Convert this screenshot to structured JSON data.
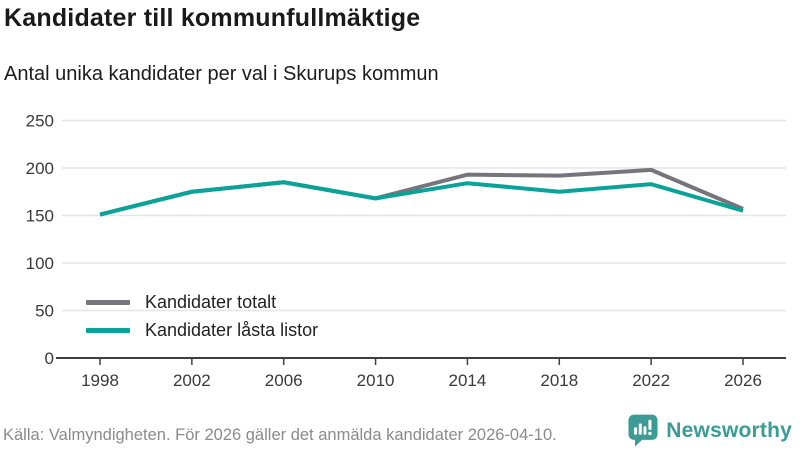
{
  "header": {
    "title": "Kandidater till kommunfullmäktige",
    "subtitle": "Antal unika kandidater per val i Skurups kommun"
  },
  "chart_data": {
    "type": "line",
    "x": [
      1998,
      2002,
      2006,
      2010,
      2014,
      2018,
      2022,
      2026
    ],
    "series": [
      {
        "name": "Kandidater totalt",
        "color": "#76757b",
        "values": [
          151,
          175,
          185,
          168,
          193,
          192,
          198,
          157
        ]
      },
      {
        "name": "Kandidater låsta listor",
        "color": "#09a39a",
        "values": [
          151,
          175,
          185,
          168,
          184,
          175,
          183,
          155
        ]
      }
    ],
    "title": "Kandidater till kommunfullmäktige",
    "subtitle": "Antal unika kandidater per val i Skurups kommun",
    "xlabel": "",
    "ylabel": "",
    "ylim": [
      0,
      250
    ],
    "yticks": [
      0,
      50,
      100,
      150,
      200,
      250
    ],
    "grid": true,
    "legend_position": "inside-bottom-left"
  },
  "legend": {
    "item1": "Kandidater totalt",
    "item2": "Kandidater låsta listor"
  },
  "footer": {
    "source": "Källa: Valmyndigheten. För 2026 gäller det anmälda kandidater 2026-04-10.",
    "logo_text": "Newsworthy"
  },
  "colors": {
    "series_total": "#76757b",
    "series_locked": "#09a39a",
    "logo_teal": "#3b9c95",
    "gridline": "#e5e5e5",
    "axis": "#3f3f3f",
    "tick_label": "#3a3a3a"
  }
}
